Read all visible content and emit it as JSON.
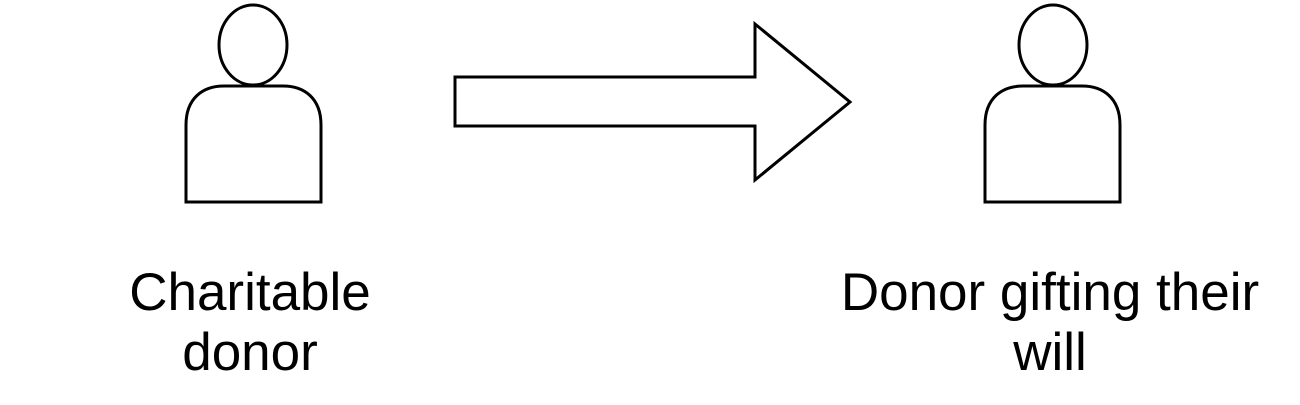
{
  "diagram": {
    "nodes": [
      {
        "id": "charitable-donor",
        "icon": "person-icon",
        "label_lines": [
          "Charitable",
          "donor"
        ]
      },
      {
        "id": "donor-gifting-will",
        "icon": "person-icon",
        "label_lines": [
          "Donor gifting their",
          "will"
        ]
      }
    ],
    "edges": [
      {
        "from": "charitable-donor",
        "to": "donor-gifting-will",
        "style": "block-arrow"
      }
    ],
    "colors": {
      "stroke": "#000000",
      "fill": "#ffffff",
      "background": "#ffffff"
    }
  }
}
